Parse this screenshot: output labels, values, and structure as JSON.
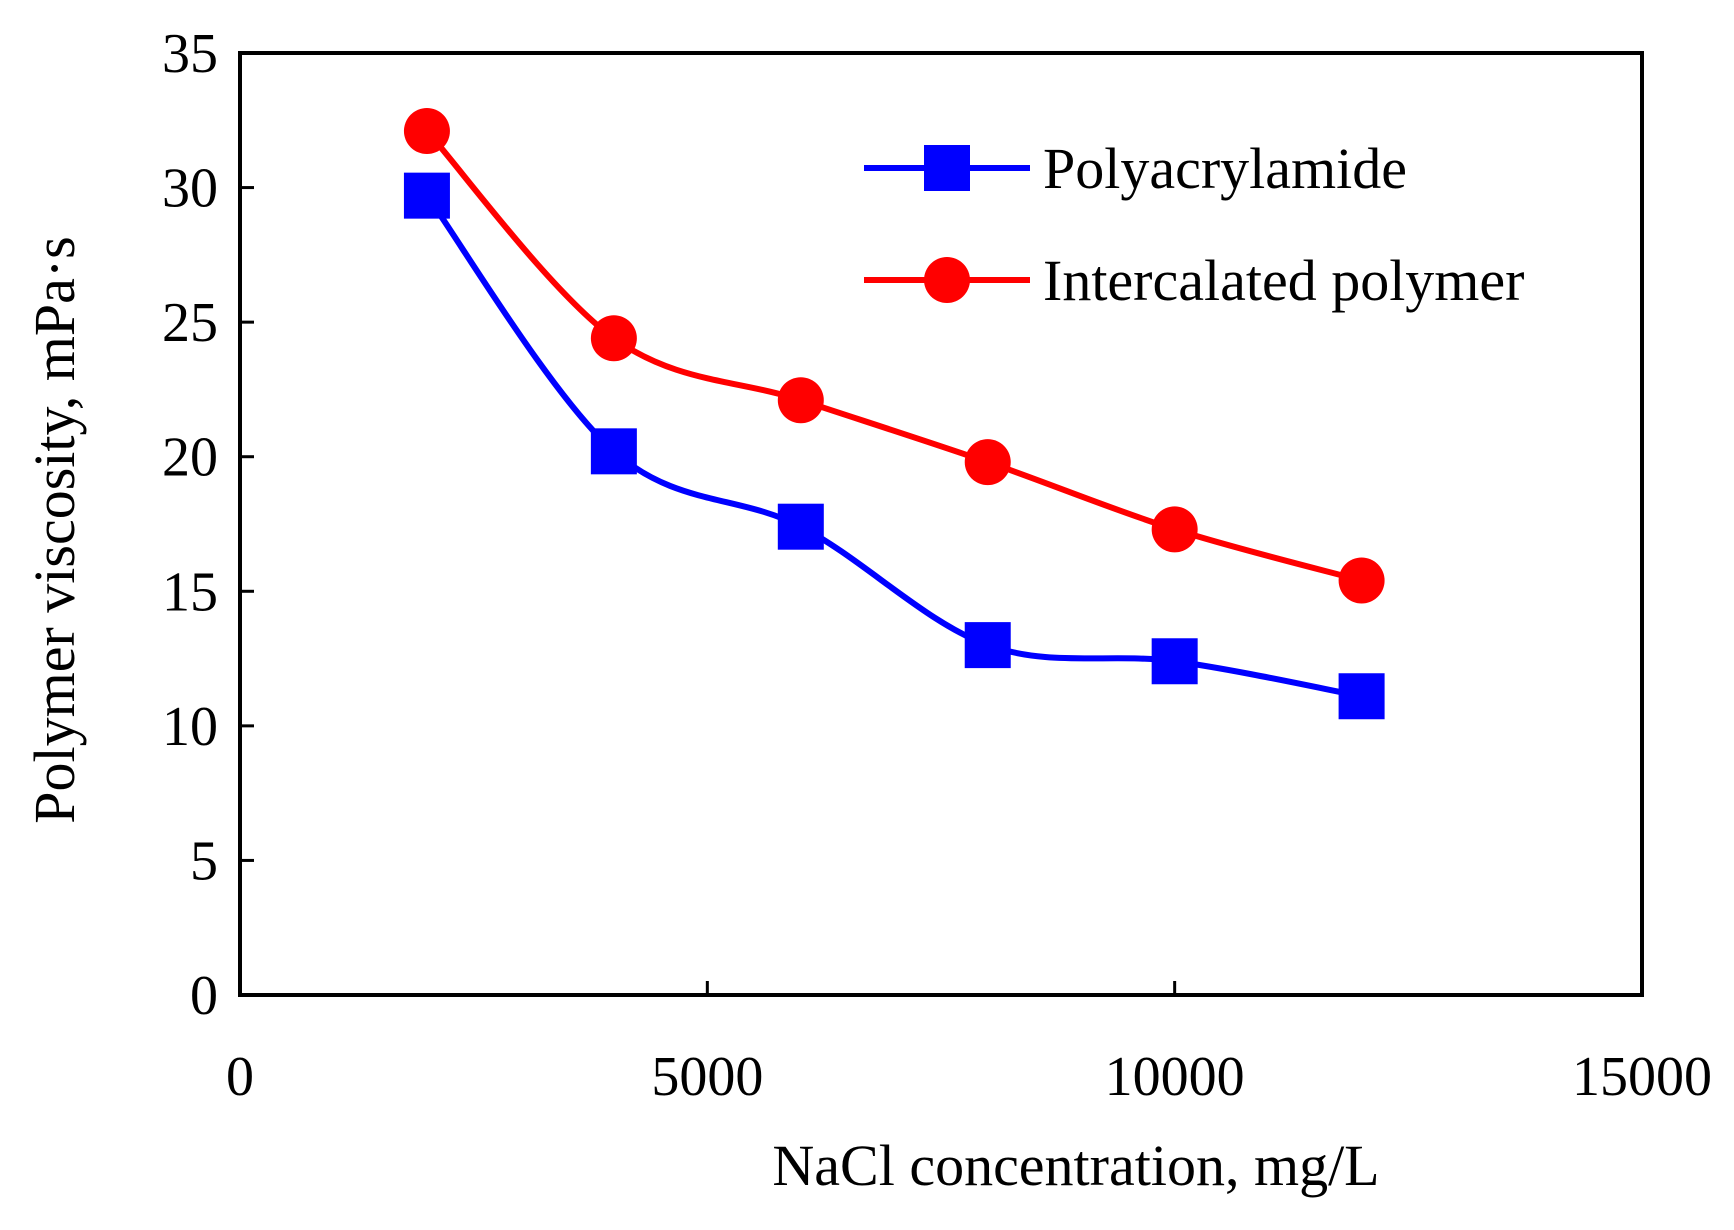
{
  "chart_data": {
    "type": "line",
    "title": "",
    "xlabel": "NaCl concentration, mg/L",
    "ylabel": "Polymer viscosity, mPa·s",
    "xlim": [
      0,
      15000
    ],
    "ylim": [
      0,
      35
    ],
    "xticks": [
      0,
      5000,
      10000,
      15000
    ],
    "yticks": [
      0,
      5,
      10,
      15,
      20,
      25,
      30,
      35
    ],
    "x_tick_labels": [
      "0",
      "5000",
      "10000",
      "15000"
    ],
    "y_tick_labels": [
      "0",
      "5",
      "10",
      "15",
      "20",
      "25",
      "30",
      "35"
    ],
    "grid": false,
    "legend_position": "top-right inside",
    "x": [
      2000,
      4000,
      6000,
      8000,
      10000,
      12000
    ],
    "series": [
      {
        "name": "Polyacrylamide",
        "color": "#0000ff",
        "marker": "square",
        "values": [
          29.7,
          20.2,
          17.4,
          13.0,
          12.4,
          11.1
        ]
      },
      {
        "name": "Intercalated polymer",
        "color": "#ff0000",
        "marker": "circle",
        "values": [
          32.1,
          24.4,
          22.1,
          19.8,
          17.3,
          15.4
        ]
      }
    ]
  }
}
